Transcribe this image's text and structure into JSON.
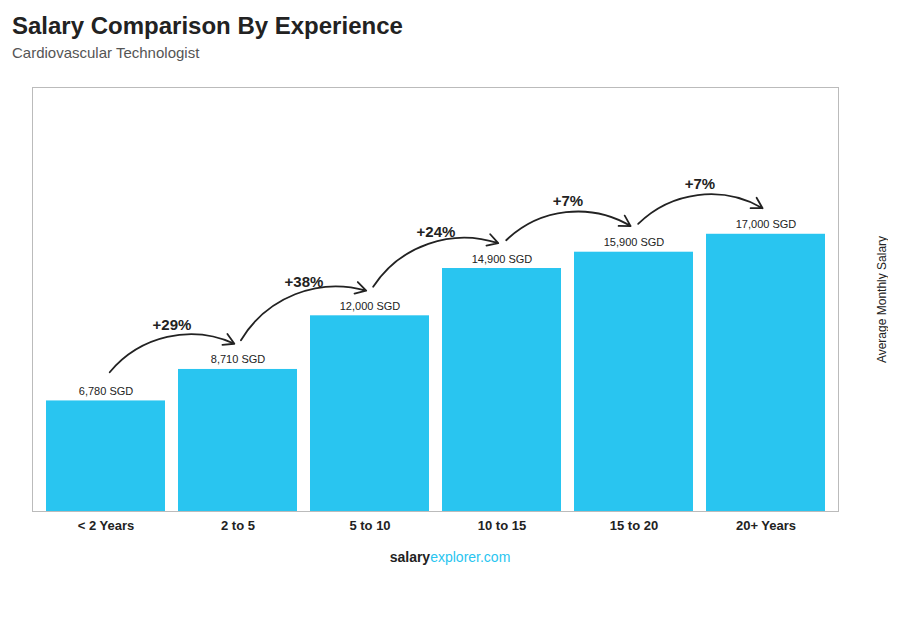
{
  "chart_data": {
    "type": "bar",
    "title": "Salary Comparison By Experience",
    "subtitle": "Cardiovascular Technologist",
    "categories": [
      "< 2 Years",
      "2 to 5",
      "5 to 10",
      "10 to 15",
      "15 to 20",
      "20+ Years"
    ],
    "values": [
      6780,
      8710,
      12000,
      14900,
      15900,
      17000
    ],
    "value_labels": [
      "6,780 SGD",
      "8,710 SGD",
      "12,000 SGD",
      "14,900 SGD",
      "15,900 SGD",
      "17,000 SGD"
    ],
    "data_labels": true,
    "color": "#29c5f0",
    "ylabel": "Average Monthly Salary",
    "ylim": [
      0,
      26000
    ],
    "tick_labels": "x",
    "grid": false,
    "annotations": [
      "+29%",
      "+38%",
      "+24%",
      "+7%",
      "+7%"
    ],
    "footer": [
      "salary",
      "explorer.com"
    ]
  }
}
